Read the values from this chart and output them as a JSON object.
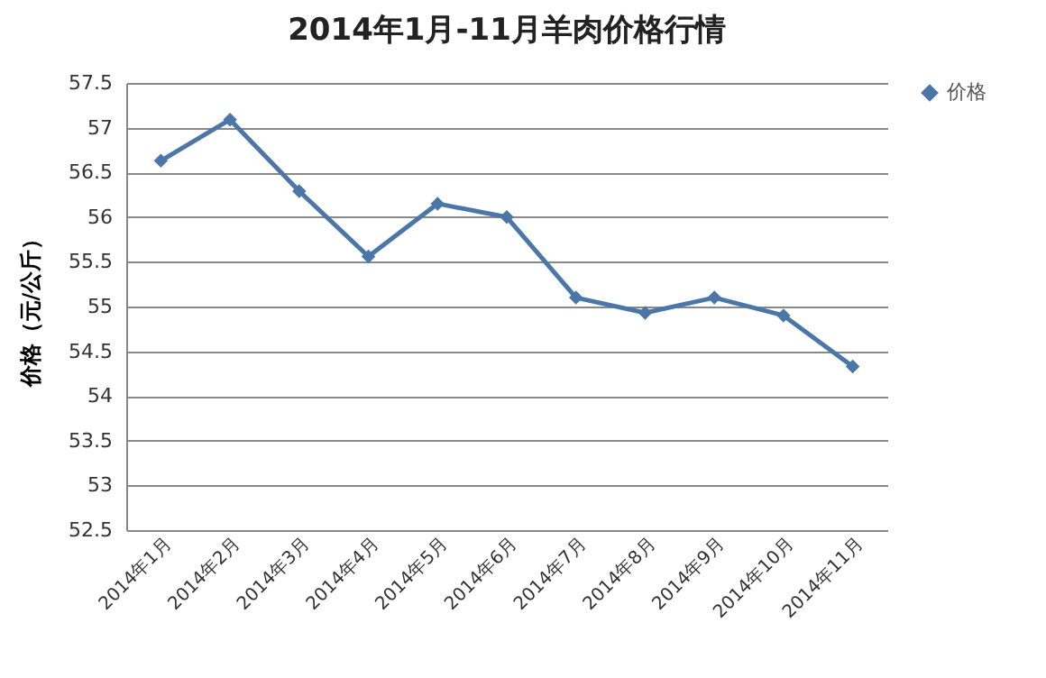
{
  "chart_data": {
    "type": "line",
    "title": "2014年1月-11月羊肉价格行情",
    "ylabel": "价格（元/公斤）",
    "categories": [
      "2014年1月",
      "2014年2月",
      "2014年3月",
      "2014年4月",
      "2014年5月",
      "2014年6月",
      "2014年7月",
      "2014年8月",
      "2014年9月",
      "2014年10月",
      "2014年11月"
    ],
    "series": [
      {
        "name": "价格",
        "color": "#4a76a8",
        "values": [
          56.63,
          57.09,
          56.29,
          55.56,
          56.15,
          56.0,
          55.1,
          54.93,
          55.1,
          54.9,
          54.33
        ]
      }
    ],
    "ylim": [
      52.5,
      57.5
    ],
    "yticks": [
      52.5,
      53,
      53.5,
      54,
      54.5,
      55,
      55.5,
      56,
      56.5,
      57,
      57.5
    ],
    "grid": "y",
    "legend": "right",
    "marker": "diamond",
    "line_style": "solid"
  }
}
